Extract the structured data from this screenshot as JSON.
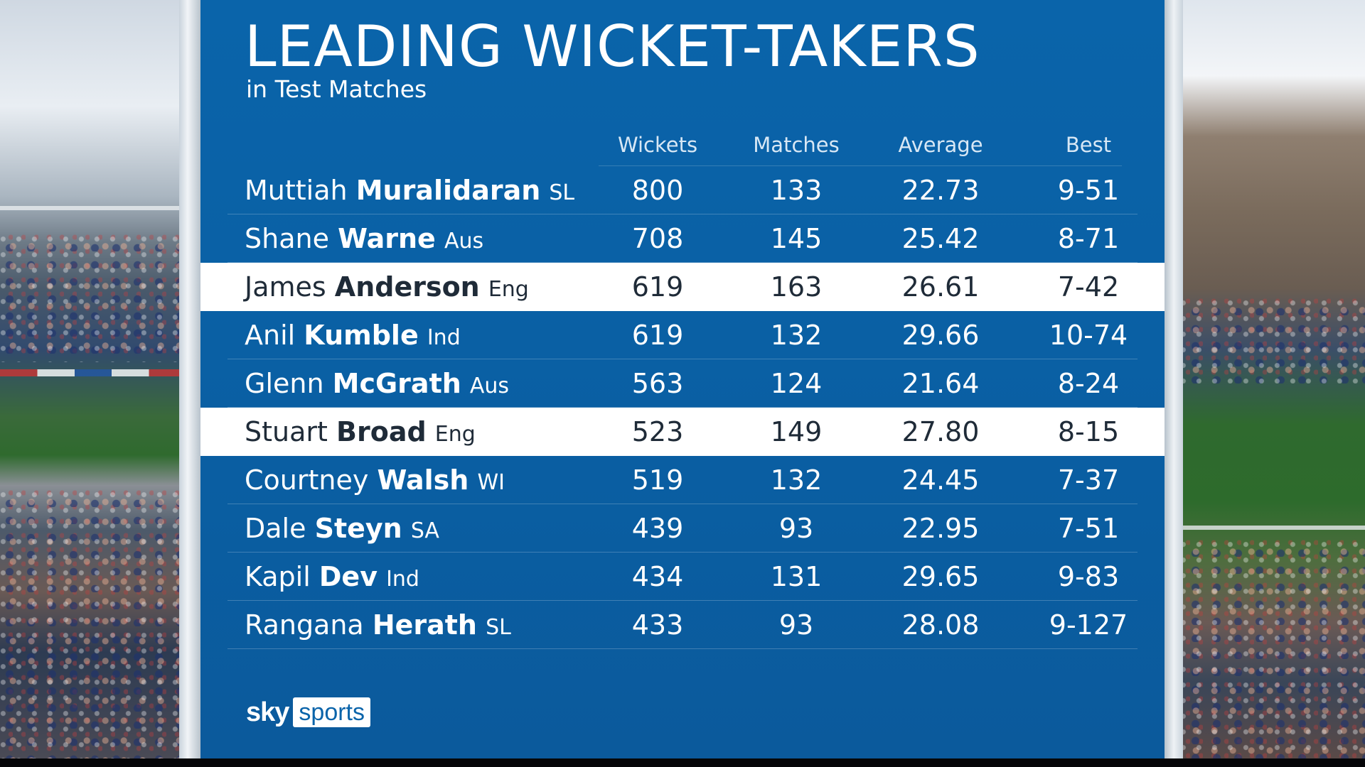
{
  "title": "LEADING WICKET-TAKERS",
  "subtitle": "in Test Matches",
  "columns": [
    "Wickets",
    "Matches",
    "Average",
    "Best"
  ],
  "rows": [
    {
      "first": "Muttiah",
      "surname": "Muralidaran",
      "country": "SL",
      "wickets": "800",
      "matches": "133",
      "average": "22.73",
      "best": "9-51",
      "highlighted": false
    },
    {
      "first": "Shane",
      "surname": "Warne",
      "country": "Aus",
      "wickets": "708",
      "matches": "145",
      "average": "25.42",
      "best": "8-71",
      "highlighted": false
    },
    {
      "first": "James",
      "surname": "Anderson",
      "country": "Eng",
      "wickets": "619",
      "matches": "163",
      "average": "26.61",
      "best": "7-42",
      "highlighted": true
    },
    {
      "first": "Anil",
      "surname": "Kumble",
      "country": "Ind",
      "wickets": "619",
      "matches": "132",
      "average": "29.66",
      "best": "10-74",
      "highlighted": false
    },
    {
      "first": "Glenn",
      "surname": "McGrath",
      "country": "Aus",
      "wickets": "563",
      "matches": "124",
      "average": "21.64",
      "best": "8-24",
      "highlighted": false
    },
    {
      "first": "Stuart",
      "surname": "Broad",
      "country": "Eng",
      "wickets": "523",
      "matches": "149",
      "average": "27.80",
      "best": "8-15",
      "highlighted": true
    },
    {
      "first": "Courtney",
      "surname": "Walsh",
      "country": "WI",
      "wickets": "519",
      "matches": "132",
      "average": "24.45",
      "best": "7-37",
      "highlighted": false
    },
    {
      "first": "Dale",
      "surname": "Steyn",
      "country": "SA",
      "wickets": "439",
      "matches": "93",
      "average": "22.95",
      "best": "7-51",
      "highlighted": false
    },
    {
      "first": "Kapil",
      "surname": "Dev",
      "country": "Ind",
      "wickets": "434",
      "matches": "131",
      "average": "29.65",
      "best": "9-83",
      "highlighted": false
    },
    {
      "first": "Rangana",
      "surname": "Herath",
      "country": "SL",
      "wickets": "433",
      "matches": "93",
      "average": "28.08",
      "best": "9-127",
      "highlighted": false
    }
  ],
  "logo": {
    "sky": "sky",
    "sports": "sports"
  },
  "colors": {
    "panel": "#0a64aa",
    "highlight_row": "#ffffff",
    "highlight_text": "#1f2b38"
  }
}
